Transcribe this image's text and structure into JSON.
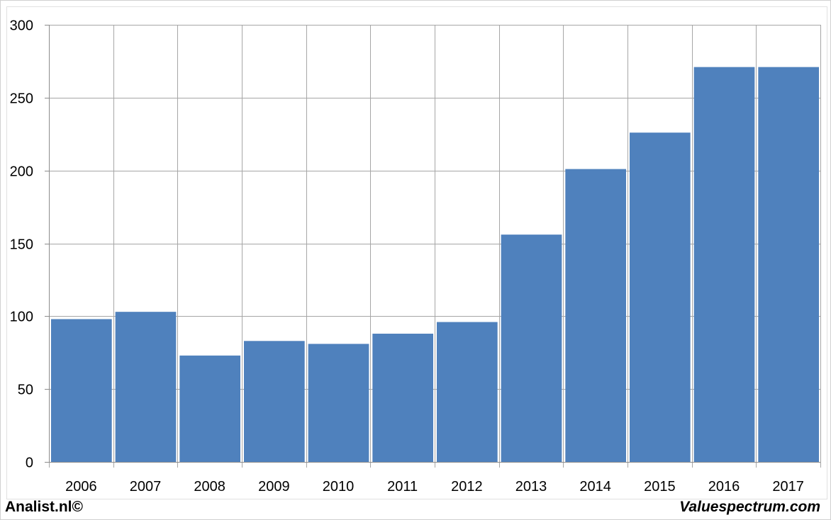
{
  "chart_data": {
    "type": "bar",
    "categories": [
      "2006",
      "2007",
      "2008",
      "2009",
      "2010",
      "2011",
      "2012",
      "2013",
      "2014",
      "2015",
      "2016",
      "2017"
    ],
    "values": [
      98,
      103,
      73,
      83,
      81,
      88,
      96,
      156,
      201,
      226,
      271,
      271
    ],
    "ylim": [
      0,
      300
    ],
    "yticks": [
      0,
      50,
      100,
      150,
      200,
      250,
      300
    ],
    "grid": true,
    "bar_color": "#4f81bd",
    "grid_color": "#a6a6a6"
  },
  "footer": {
    "left": "Analist.nl©",
    "right": "Valuespectrum.com"
  }
}
